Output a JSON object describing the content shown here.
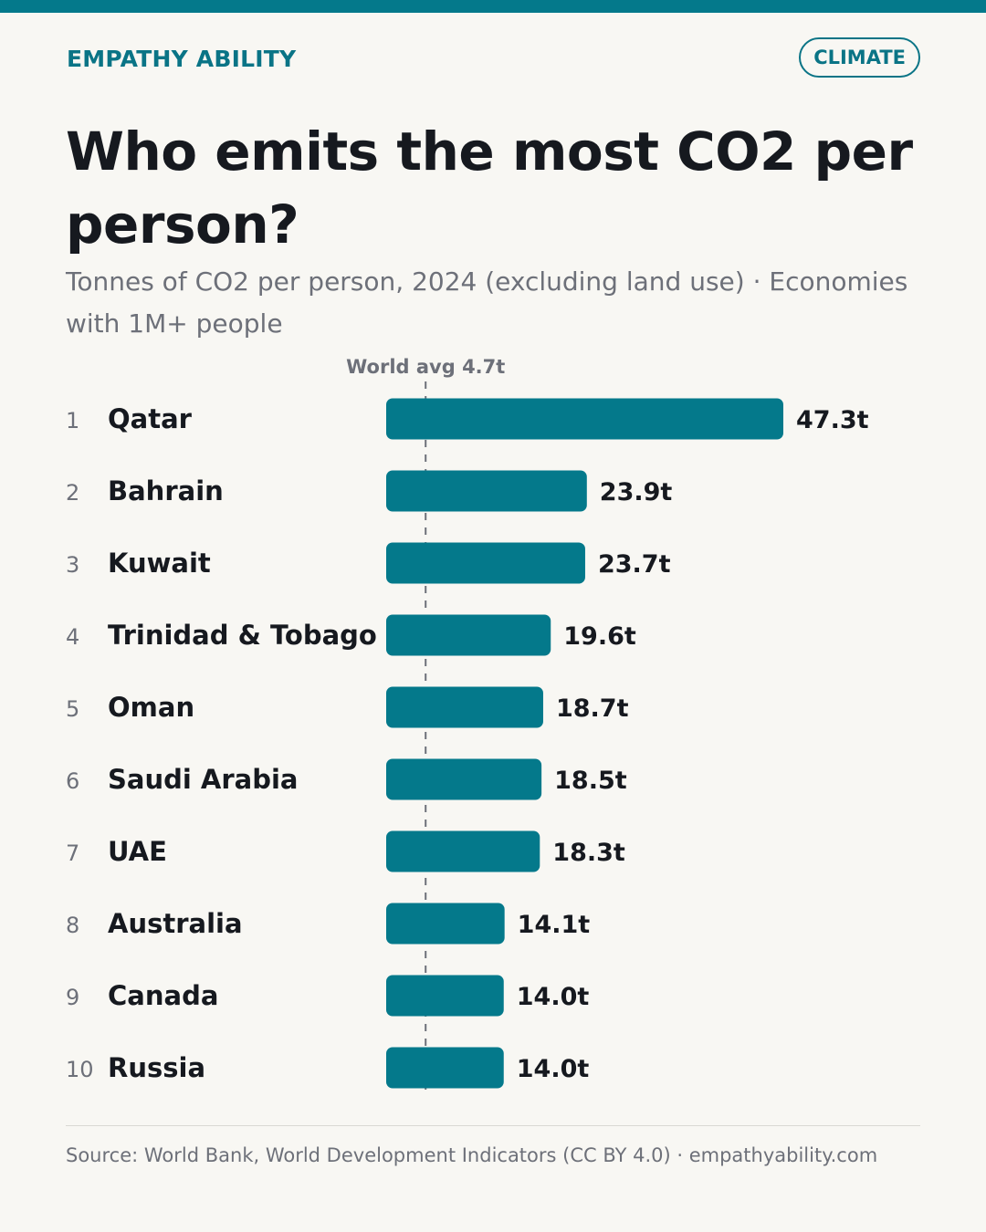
{
  "brand": "EMPATHY ABILITY",
  "tag": "CLIMATE",
  "colors": {
    "accent": "#04798b",
    "text": "#16191f",
    "muted": "#6d7079",
    "background": "#f8f7f3"
  },
  "source": "Source: World Bank, World Development Indicators (CC BY 4.0) · empathyability.com",
  "chart_data": {
    "type": "bar",
    "orientation": "horizontal",
    "title": "Who emits the most CO2 per person?",
    "subtitle": "Tonnes of CO2 per person, 2024 (excluding land use) · Economies with 1M+ people",
    "ranks": [
      "1",
      "2",
      "3",
      "4",
      "5",
      "6",
      "7",
      "8",
      "9",
      "10"
    ],
    "categories": [
      "Qatar",
      "Bahrain",
      "Kuwait",
      "Trinidad & Tobago",
      "Oman",
      "Saudi Arabia",
      "UAE",
      "Australia",
      "Canada",
      "Russia"
    ],
    "values": [
      47.3,
      23.9,
      23.7,
      19.6,
      18.7,
      18.5,
      18.3,
      14.1,
      14.0,
      14.0
    ],
    "value_labels": [
      "47.3t",
      "23.9t",
      "23.7t",
      "19.6t",
      "18.7t",
      "18.5t",
      "18.3t",
      "14.1t",
      "14.0t",
      "14.0t"
    ],
    "unit": "t",
    "reference_line": {
      "value": 4.7,
      "label": "World avg 4.7t"
    },
    "xlim": [
      0,
      47.3
    ],
    "grid": false,
    "legend": "none"
  }
}
